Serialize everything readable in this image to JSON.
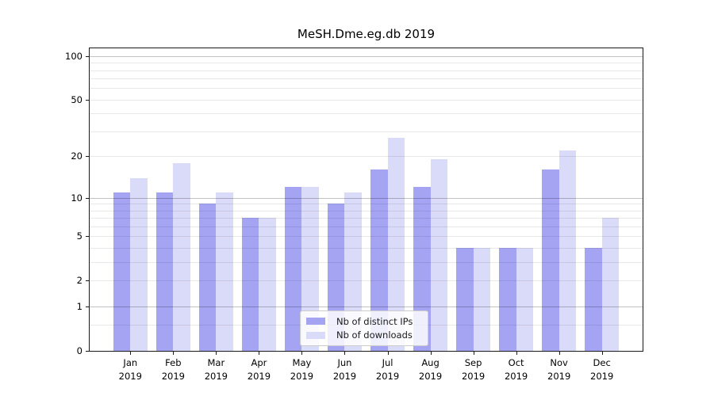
{
  "title": "MeSH.Dme.eg.db 2019",
  "chart_data": {
    "type": "bar",
    "title": "MeSH.Dme.eg.db 2019",
    "categories": [
      "Jan 2019",
      "Feb 2019",
      "Mar 2019",
      "Apr 2019",
      "May 2019",
      "Jun 2019",
      "Jul 2019",
      "Aug 2019",
      "Sep 2019",
      "Oct 2019",
      "Nov 2019",
      "Dec 2019"
    ],
    "series": [
      {
        "name": "Nb of distinct IPs",
        "color": "#a4a4f3",
        "values": [
          11,
          11,
          9,
          7,
          12,
          9,
          16,
          12,
          4,
          4,
          16,
          4
        ]
      },
      {
        "name": "Nb of downloads",
        "color": "#dadaf9",
        "values": [
          14,
          18,
          11,
          7,
          12,
          11,
          27,
          19,
          4,
          4,
          22,
          7
        ]
      }
    ],
    "xlabel": "",
    "ylabel": "",
    "yscale": "log1p",
    "ylim": [
      0,
      113
    ],
    "yticks": [
      0,
      1,
      2,
      5,
      10,
      20,
      50,
      100
    ],
    "major_gridlines": [
      1,
      10,
      100
    ],
    "minor_gridlines": [
      0.5,
      2,
      3,
      4,
      5,
      6,
      7,
      8,
      9,
      20,
      30,
      40,
      50,
      60,
      70,
      80,
      90
    ],
    "grid": true,
    "legend_position": "lower center"
  },
  "legend": {
    "items": [
      {
        "label": "Nb of distinct IPs"
      },
      {
        "label": "Nb of downloads"
      }
    ]
  },
  "colors": {
    "distinct_ips_bar": "#a4a4f3",
    "downloads_bar": "#dadaf9",
    "frame": "#1a1a1a"
  }
}
